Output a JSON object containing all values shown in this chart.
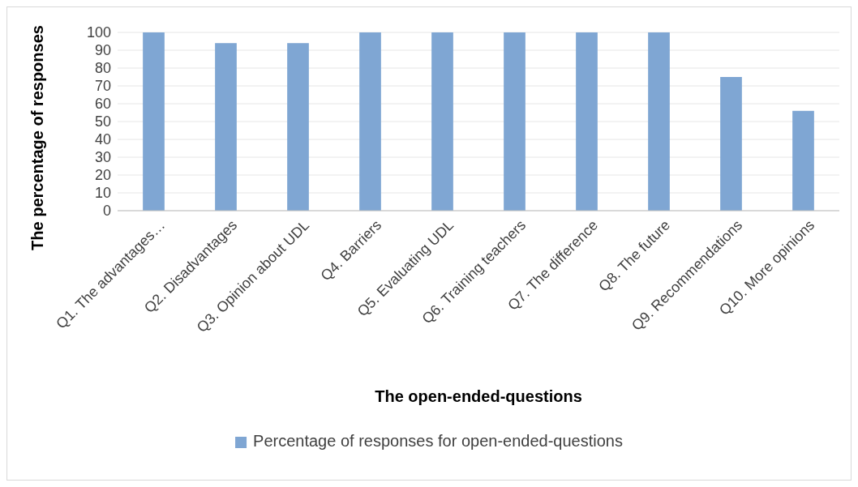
{
  "chart_data": {
    "type": "bar",
    "xlabel": "The open-ended-questions",
    "ylabel": "The percentage of responses",
    "categories": [
      "Q1. The advantages…",
      "Q2. Disadvantages",
      "Q3. Opinion about UDL",
      "Q4. Barriers",
      "Q5. Evaluating UDL",
      "Q6. Training teachers",
      "Q7. The difference",
      "Q8. The future",
      "Q9. Recommendations",
      "Q10. More opinions"
    ],
    "series": [
      {
        "name": "Percentage of responses for open-ended-questions",
        "color": "#7fa6d3",
        "values": [
          100,
          94,
          94,
          100,
          100,
          100,
          100,
          100,
          75,
          56
        ]
      }
    ],
    "ylim": [
      0,
      100
    ],
    "yticks": [
      0,
      10,
      20,
      30,
      40,
      50,
      60,
      70,
      80,
      90,
      100
    ],
    "grid": "y",
    "legend": "bottom"
  }
}
